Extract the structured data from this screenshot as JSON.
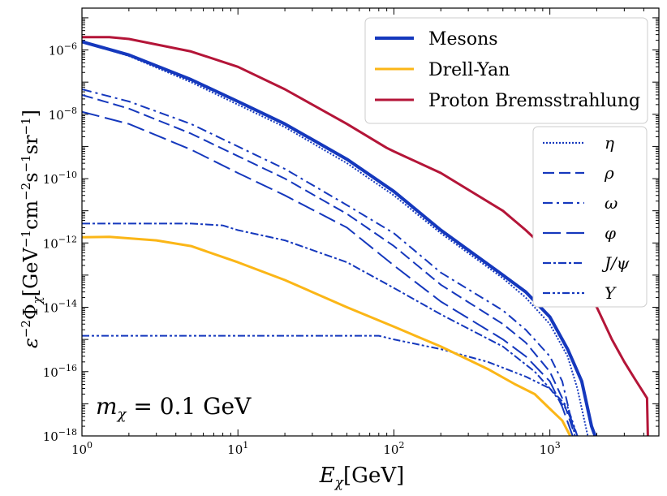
{
  "chart_data": {
    "type": "line",
    "xlabel": "E_χ[GeV]",
    "ylabel": "ε^{−2}Φ_χ[GeV^{−1}cm^{−2}s^{−1}sr^{−1}]",
    "xscale": "log",
    "yscale": "log",
    "xlim": [
      1,
      5000
    ],
    "ylim": [
      1e-18,
      2e-05
    ],
    "x_ticks": [
      {
        "value": 1,
        "base": "10",
        "exp": "0"
      },
      {
        "value": 10,
        "base": "10",
        "exp": "1"
      },
      {
        "value": 100,
        "base": "10",
        "exp": "2"
      },
      {
        "value": 1000,
        "base": "10",
        "exp": "3"
      }
    ],
    "y_ticks": [
      {
        "value": 1e-18,
        "base": "10",
        "exp": "−18"
      },
      {
        "value": 1e-16,
        "base": "10",
        "exp": "−16"
      },
      {
        "value": 1e-14,
        "base": "10",
        "exp": "−14"
      },
      {
        "value": 1e-12,
        "base": "10",
        "exp": "−12"
      },
      {
        "value": 1e-10,
        "base": "10",
        "exp": "−10"
      },
      {
        "value": 1e-08,
        "base": "10",
        "exp": "−8"
      },
      {
        "value": 1e-06,
        "base": "10",
        "exp": "−6"
      }
    ],
    "annotation": "m_χ = 0.1 GeV",
    "legend_main": {
      "location": "upper-right",
      "entries": [
        "Mesons",
        "Drell-Yan",
        "Proton Bremsstrahlung"
      ]
    },
    "legend_mesons": {
      "location": "center-right",
      "entries": [
        "η",
        "ρ",
        "ω",
        "φ",
        "J/ψ",
        "Υ"
      ]
    },
    "series": [
      {
        "name": "Mesons",
        "color": "#1538bd",
        "style": "solid",
        "width": 4,
        "points": [
          [
            1,
            1.8e-06
          ],
          [
            2,
            7e-07
          ],
          [
            5,
            1.2e-07
          ],
          [
            10,
            2.5e-08
          ],
          [
            20,
            5e-09
          ],
          [
            50,
            4e-10
          ],
          [
            100,
            4e-11
          ],
          [
            200,
            2.5e-12
          ],
          [
            500,
            1e-13
          ],
          [
            700,
            3e-14
          ],
          [
            1000,
            5e-15
          ],
          [
            1300,
            5e-16
          ],
          [
            1600,
            5e-17
          ],
          [
            1850,
            2e-18
          ],
          [
            1950,
            1e-18
          ]
        ]
      },
      {
        "name": "Drell-Yan",
        "color": "#fbb617",
        "style": "solid",
        "width": 3,
        "points": [
          [
            1,
            1.5e-12
          ],
          [
            1.5,
            1.55e-12
          ],
          [
            3,
            1.2e-12
          ],
          [
            5,
            8e-13
          ],
          [
            10,
            2.5e-13
          ],
          [
            20,
            7e-14
          ],
          [
            50,
            1e-14
          ],
          [
            100,
            2.5e-15
          ],
          [
            200,
            6e-16
          ],
          [
            400,
            1.2e-16
          ],
          [
            600,
            4e-17
          ],
          [
            800,
            2e-17
          ],
          [
            1000,
            7e-18
          ],
          [
            1200,
            3e-18
          ],
          [
            1350,
            1e-18
          ]
        ]
      },
      {
        "name": "Proton Bremsstrahlung",
        "color": "#b41538",
        "style": "solid",
        "width": 3,
        "points": [
          [
            1,
            2.5e-06
          ],
          [
            1.5,
            2.5e-06
          ],
          [
            2,
            2.2e-06
          ],
          [
            5,
            9e-07
          ],
          [
            10,
            3e-07
          ],
          [
            20,
            6e-08
          ],
          [
            50,
            5e-09
          ],
          [
            90,
            9e-10
          ],
          [
            100,
            7e-10
          ],
          [
            200,
            1.5e-10
          ],
          [
            500,
            1e-11
          ],
          [
            700,
            2.5e-12
          ],
          [
            1000,
            5e-13
          ],
          [
            2000,
            1e-14
          ],
          [
            2500,
            1e-15
          ],
          [
            3000,
            2e-16
          ],
          [
            3500,
            6e-17
          ],
          [
            4200,
            1.5e-17
          ],
          [
            4250,
            1e-18
          ]
        ]
      },
      {
        "name": "η",
        "color": "#1538bd",
        "style": "dotted",
        "width": 2,
        "points": [
          [
            1,
            1.8e-06
          ],
          [
            2,
            6.5e-07
          ],
          [
            5,
            1e-07
          ],
          [
            10,
            2e-08
          ],
          [
            20,
            4e-09
          ],
          [
            50,
            3e-10
          ],
          [
            100,
            3e-11
          ],
          [
            200,
            2e-12
          ],
          [
            500,
            8e-14
          ],
          [
            700,
            2e-14
          ],
          [
            1000,
            3e-15
          ],
          [
            1300,
            3e-16
          ],
          [
            1500,
            3e-17
          ],
          [
            1750,
            1e-18
          ]
        ]
      },
      {
        "name": "ρ",
        "color": "#1538bd",
        "style": "dash",
        "width": 2,
        "points": [
          [
            1,
            4e-08
          ],
          [
            2,
            1.5e-08
          ],
          [
            5,
            2.5e-09
          ],
          [
            10,
            5e-10
          ],
          [
            20,
            1e-10
          ],
          [
            50,
            8e-12
          ],
          [
            100,
            8e-13
          ],
          [
            200,
            5e-14
          ],
          [
            500,
            3e-15
          ],
          [
            700,
            8e-16
          ],
          [
            1000,
            1e-16
          ],
          [
            1200,
            1.5e-17
          ],
          [
            1450,
            1e-18
          ]
        ]
      },
      {
        "name": "ω",
        "color": "#1538bd",
        "style": "dashdot",
        "width": 2,
        "points": [
          [
            1,
            6e-08
          ],
          [
            2,
            2.5e-08
          ],
          [
            5,
            5e-09
          ],
          [
            10,
            1e-09
          ],
          [
            20,
            2e-10
          ],
          [
            50,
            1.5e-11
          ],
          [
            100,
            2e-12
          ],
          [
            200,
            1.2e-13
          ],
          [
            500,
            8e-15
          ],
          [
            700,
            2e-15
          ],
          [
            1000,
            3e-16
          ],
          [
            1200,
            5e-17
          ],
          [
            1450,
            1e-18
          ]
        ]
      },
      {
        "name": "φ",
        "color": "#1538bd",
        "style": "longdash",
        "width": 2,
        "points": [
          [
            1,
            1.2e-08
          ],
          [
            2,
            5e-09
          ],
          [
            5,
            8e-10
          ],
          [
            10,
            1.5e-10
          ],
          [
            20,
            3e-11
          ],
          [
            50,
            3e-12
          ],
          [
            100,
            2e-13
          ],
          [
            200,
            1.5e-14
          ],
          [
            500,
            1e-15
          ],
          [
            700,
            3e-16
          ],
          [
            1000,
            5e-17
          ],
          [
            1200,
            8e-18
          ],
          [
            1400,
            1e-18
          ]
        ]
      },
      {
        "name": "J/ψ",
        "color": "#1538bd",
        "style": "dashdot2",
        "width": 2,
        "points": [
          [
            1,
            4e-12
          ],
          [
            2,
            4e-12
          ],
          [
            5,
            4e-12
          ],
          [
            8,
            3.5e-12
          ],
          [
            10,
            2.5e-12
          ],
          [
            20,
            1.2e-12
          ],
          [
            50,
            2.5e-13
          ],
          [
            100,
            4e-14
          ],
          [
            200,
            6e-15
          ],
          [
            500,
            6e-16
          ],
          [
            800,
            1e-16
          ],
          [
            1000,
            3e-17
          ],
          [
            1300,
            6e-18
          ],
          [
            1500,
            1e-18
          ]
        ]
      },
      {
        "name": "Υ",
        "color": "#1538bd",
        "style": "dashdotdot",
        "width": 2,
        "points": [
          [
            1,
            1.3e-15
          ],
          [
            5,
            1.3e-15
          ],
          [
            20,
            1.3e-15
          ],
          [
            80,
            1.3e-15
          ],
          [
            100,
            1e-15
          ],
          [
            200,
            5e-16
          ],
          [
            400,
            2e-16
          ],
          [
            700,
            7e-17
          ],
          [
            1000,
            3e-17
          ],
          [
            1300,
            8e-18
          ],
          [
            1500,
            1e-18
          ]
        ]
      }
    ]
  }
}
